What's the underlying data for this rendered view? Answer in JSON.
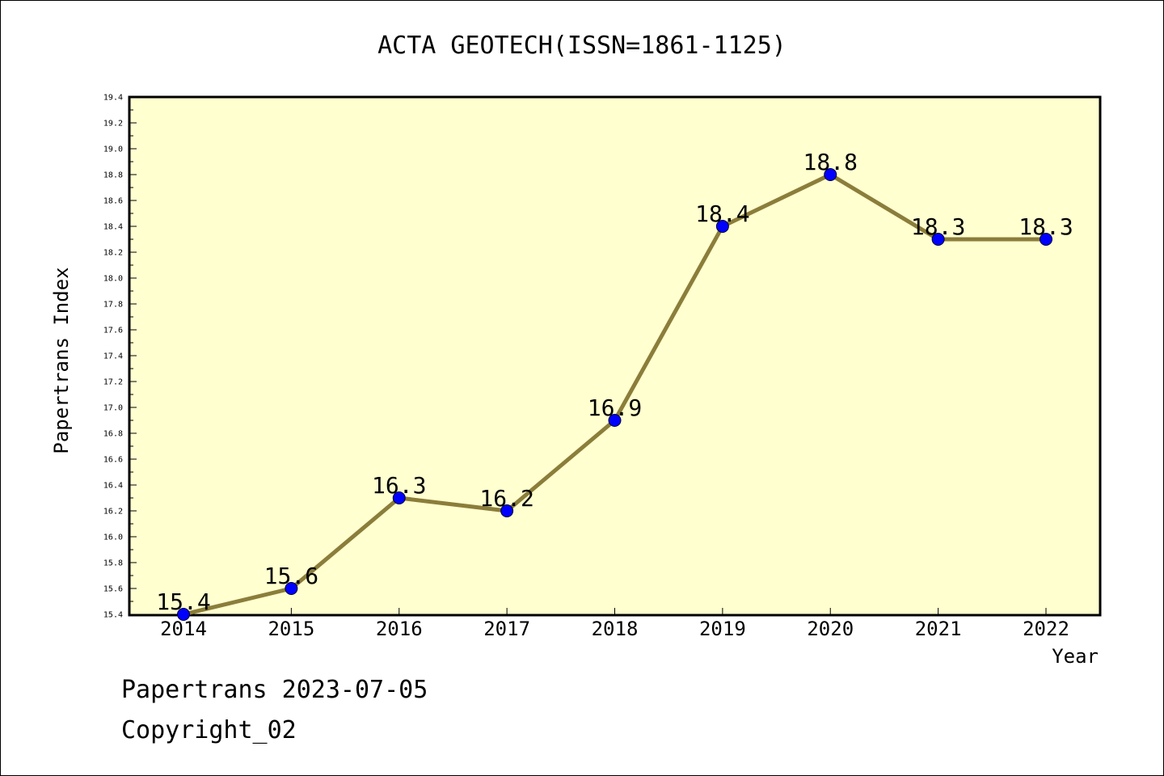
{
  "chart_data": {
    "type": "line",
    "title": "ACTA GEOTECH(ISSN=1861-1125)",
    "xlabel": "Year",
    "ylabel": "Papertrans Index",
    "categories": [
      "2014",
      "2015",
      "2016",
      "2017",
      "2018",
      "2019",
      "2020",
      "2021",
      "2022"
    ],
    "series": [
      {
        "values": [
          15.4,
          15.6,
          16.3,
          16.2,
          16.9,
          18.4,
          18.8,
          18.3,
          18.3
        ]
      }
    ],
    "data_labels": [
      "15.4",
      "15.6",
      "16.3",
      "16.2",
      "16.9",
      "18.4",
      "18.8",
      "18.3",
      "18.3"
    ],
    "ylim": [
      15.4,
      19.4
    ],
    "yticks": [
      "15.4",
      "15.6",
      "15.8",
      "16.0",
      "16.2",
      "16.4",
      "16.6",
      "16.8",
      "17.0",
      "17.2",
      "17.4",
      "17.6",
      "17.8",
      "18.0",
      "18.2",
      "18.4",
      "18.6",
      "18.8",
      "19.0",
      "19.2",
      "19.4"
    ],
    "grid": false,
    "colors": {
      "plot_bg": "#ffffd0",
      "line": "#8b7d3a",
      "marker": "#0000ff"
    }
  },
  "footer": {
    "date_line": "Papertrans 2023-07-05",
    "copyright": "Copyright_02"
  }
}
